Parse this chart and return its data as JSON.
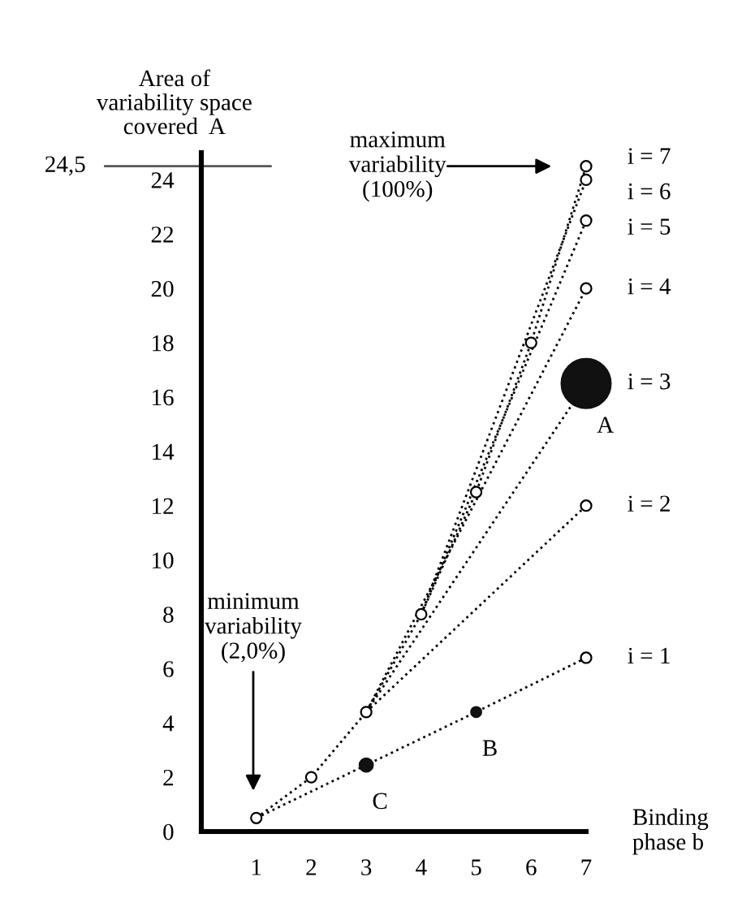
{
  "chart_data": {
    "type": "line",
    "xlabel": "Binding\nphase b",
    "ylabel": "Area of\nvariability space\ncovered  A",
    "xlim": [
      0,
      7
    ],
    "xticks": [
      1,
      2,
      3,
      4,
      5,
      6,
      7
    ],
    "ylim": [
      0,
      25
    ],
    "yticks": [
      0,
      2,
      4,
      6,
      8,
      10,
      12,
      14,
      16,
      18,
      20,
      22,
      24
    ],
    "line_style": "dotted",
    "grid": false,
    "ref_lines": [
      {
        "axis": "y",
        "value": 24.5,
        "label": "24,5",
        "color": "#555555",
        "line_style": "solid"
      }
    ],
    "series": [
      {
        "name": "i = 1",
        "color": "#000000",
        "x": [
          1,
          3,
          5,
          7
        ],
        "values": [
          0.5,
          2.45,
          4.4,
          6.4
        ]
      },
      {
        "name": "i = 2",
        "color": "#000000",
        "x": [
          3,
          7
        ],
        "values": [
          4.4,
          12
        ]
      },
      {
        "name": "i = 3",
        "color": "#000000",
        "x": [
          3,
          7
        ],
        "values": [
          4.4,
          16.5
        ]
      },
      {
        "name": "i = 4",
        "color": "#000000",
        "x": [
          3,
          7
        ],
        "values": [
          4.4,
          20
        ]
      },
      {
        "name": "i = 5",
        "color": "#000000",
        "x": [
          4,
          7
        ],
        "values": [
          8,
          22.5
        ]
      },
      {
        "name": "i = 6",
        "color": "#000000",
        "x": [
          4,
          7
        ],
        "values": [
          8,
          24
        ]
      },
      {
        "name": "i = 7",
        "color": "#000000",
        "x": [
          1,
          2,
          3,
          4,
          5,
          6,
          7
        ],
        "values": [
          0.5,
          2,
          4.4,
          8,
          12.5,
          18,
          24.5
        ]
      },
      {
        "type": "scatter",
        "marker": "circle",
        "color": "#ffffff",
        "x": [
          1,
          2,
          3,
          4,
          5,
          6,
          7,
          7,
          7,
          7,
          7,
          7
        ],
        "values": [
          0.5,
          2,
          4.4,
          8,
          12.5,
          18,
          24.5,
          24,
          22.5,
          20,
          12,
          6.4
        ]
      },
      {
        "type": "bubble",
        "color": "#111111",
        "x": [
          7,
          5,
          3
        ],
        "values": [
          16.5,
          4.4,
          2.45
        ],
        "sizes": [
          1,
          0.04,
          0.07
        ]
      }
    ],
    "annotations": [
      {
        "text": "A",
        "x": 7,
        "y": 16.5
      },
      {
        "text": "B",
        "x": 5,
        "y": 4.4
      },
      {
        "text": "C",
        "x": 3,
        "y": 2.45
      },
      "maximum\nvariability\n(100%)",
      "minimum\nvariability\n(2,0%)"
    ]
  }
}
